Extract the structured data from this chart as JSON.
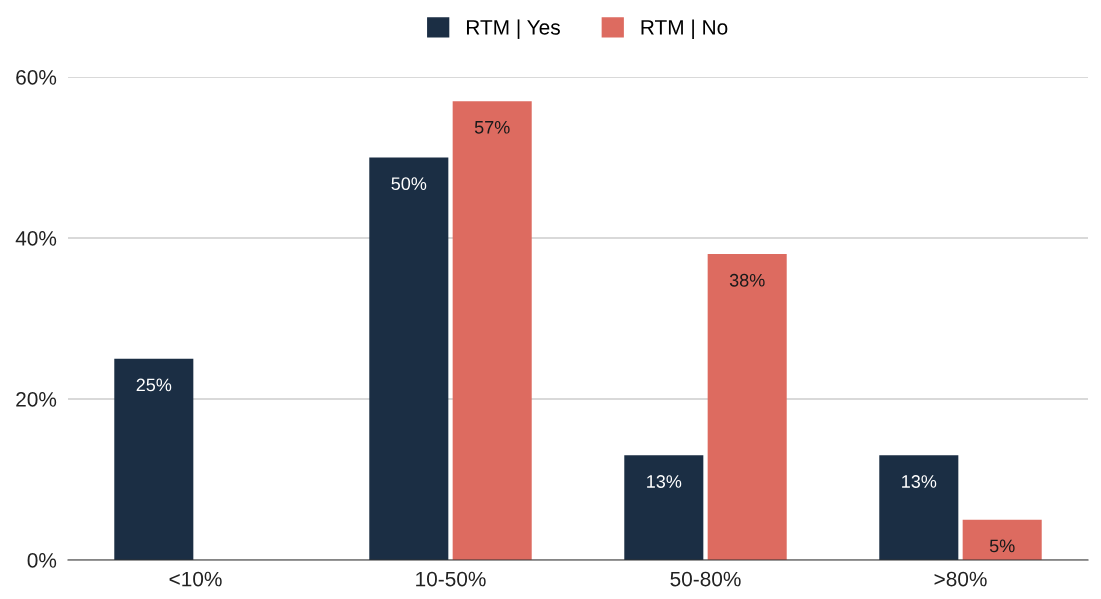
{
  "chart_data": {
    "type": "bar",
    "categories": [
      "<10%",
      "10-50%",
      "50-80%",
      ">80%"
    ],
    "series": [
      {
        "name": "RTM | Yes",
        "color": "#1b2e44",
        "values": [
          25,
          50,
          13,
          13
        ],
        "value_labels": [
          "25%",
          "50%",
          "13%",
          "13%"
        ]
      },
      {
        "name": "RTM | No",
        "color": "#dd6b60",
        "values": [
          null,
          57,
          38,
          5
        ],
        "value_labels": [
          null,
          "57%",
          "38%",
          "5%"
        ]
      }
    ],
    "ylim": [
      0,
      60
    ],
    "yticks": [
      {
        "value": 0,
        "label": "0%"
      },
      {
        "value": 20,
        "label": "20%"
      },
      {
        "value": 40,
        "label": "40%"
      },
      {
        "value": 60,
        "label": "60%"
      }
    ],
    "grid": "y",
    "legend": "top"
  }
}
